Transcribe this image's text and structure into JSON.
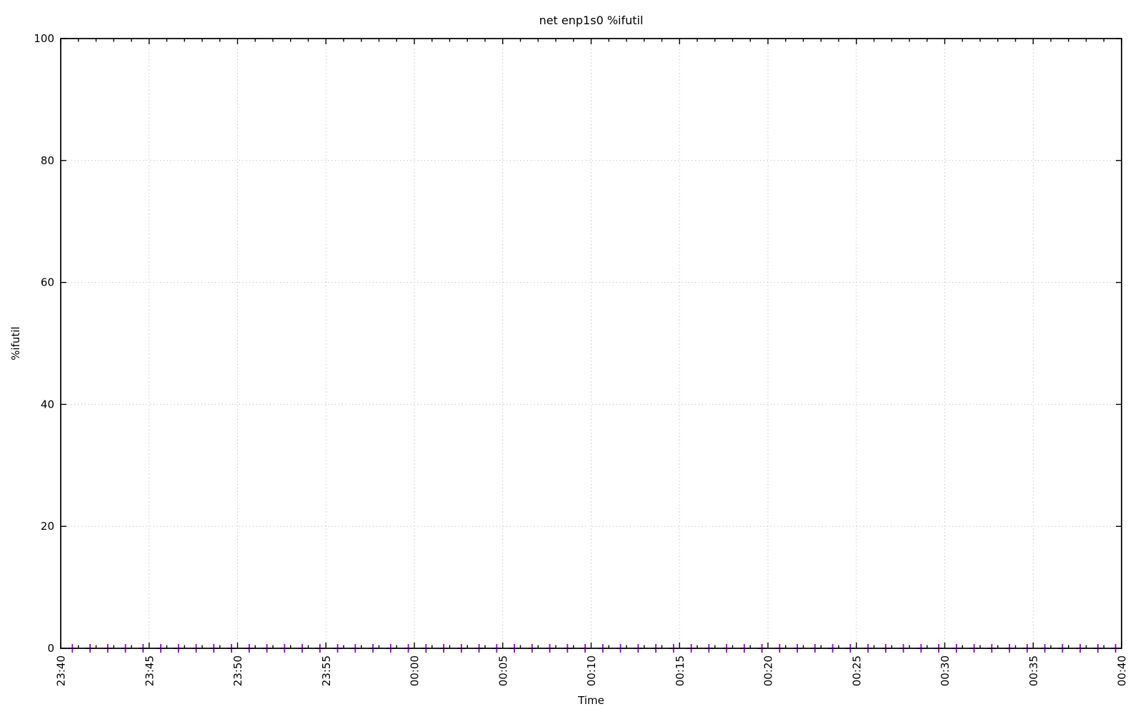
{
  "title": "net enp1s0 %ifutil",
  "axes": {
    "xlabel": "Time",
    "ylabel": "%ifutil",
    "x_major_labels": [
      "23:40",
      "23:45",
      "23:50",
      "23:55",
      "00:00",
      "00:05",
      "00:10",
      "00:15",
      "00:20",
      "00:25",
      "00:30",
      "00:35",
      "00:40"
    ],
    "x_range_minutes": 60,
    "x_major_step_minutes": 5,
    "x_minor_step_minutes": 1,
    "y_ticks": [
      0,
      20,
      40,
      60,
      80,
      100
    ],
    "y_min": 0,
    "y_max": 100
  },
  "colors": {
    "background": "#ffffff",
    "axis": "#000000",
    "grid": "#bdbdbd",
    "series": "#9400d3"
  },
  "chart_data": {
    "type": "scatter",
    "title": "net enp1s0 %ifutil",
    "xlabel": "Time",
    "ylabel": "%ifutil",
    "xlim": [
      "23:40",
      "00:40"
    ],
    "ylim": [
      0,
      100
    ],
    "grid": true,
    "legend": "none",
    "series": [
      {
        "name": "%ifutil",
        "marker": "plus",
        "color": "#9400d3",
        "x_offset_minutes": [
          0.66,
          1.66,
          2.66,
          3.66,
          4.66,
          5.66,
          6.66,
          7.66,
          8.66,
          9.66,
          10.66,
          11.66,
          12.66,
          13.66,
          14.66,
          15.66,
          16.66,
          17.66,
          18.66,
          19.66,
          20.66,
          21.66,
          22.66,
          23.66,
          24.66,
          25.66,
          26.66,
          27.66,
          28.66,
          29.66,
          30.66,
          31.66,
          32.66,
          33.66,
          34.66,
          35.66,
          36.66,
          37.66,
          38.66,
          39.66,
          40.66,
          41.66,
          42.66,
          43.66,
          44.66,
          45.66,
          46.66,
          47.66,
          48.66,
          49.66,
          50.66,
          51.66,
          52.66,
          53.66,
          54.66,
          55.66,
          56.66,
          57.66,
          58.66,
          59.66
        ],
        "values": [
          0,
          0,
          0,
          0,
          0,
          0,
          0,
          0,
          0,
          0,
          0,
          0,
          0,
          0,
          0,
          0,
          0,
          0,
          0,
          0,
          0,
          0,
          0,
          0,
          0,
          0,
          0,
          0,
          0,
          0,
          0,
          0,
          0,
          0,
          0,
          0,
          0,
          0,
          0,
          0,
          0,
          0,
          0,
          0,
          0,
          0,
          0,
          0,
          0,
          0,
          0,
          0,
          0,
          0,
          0,
          0,
          0,
          0,
          0,
          0
        ]
      }
    ]
  }
}
